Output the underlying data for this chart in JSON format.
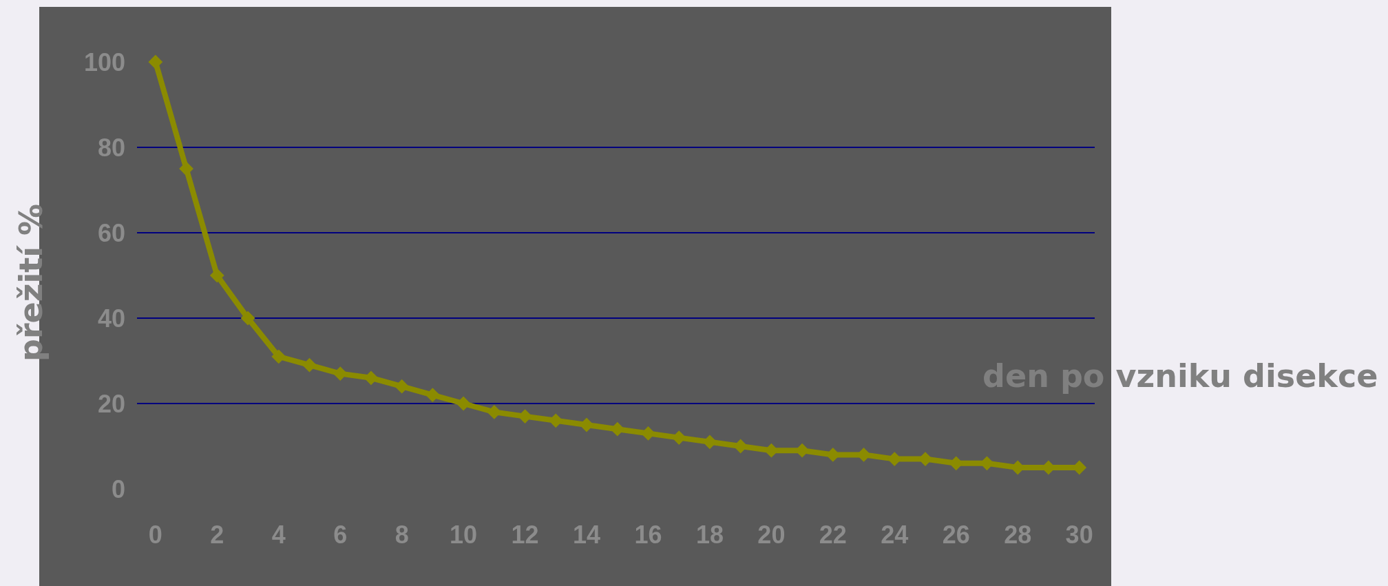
{
  "chart_data": {
    "type": "line",
    "xlabel": "den po vzniku disekce",
    "ylabel": "přežití %",
    "x": [
      0,
      1,
      2,
      3,
      4,
      5,
      6,
      7,
      8,
      9,
      10,
      11,
      12,
      13,
      14,
      15,
      16,
      17,
      18,
      19,
      20,
      21,
      22,
      23,
      24,
      25,
      26,
      27,
      28,
      29,
      30
    ],
    "series": [
      {
        "color": "#8b8b00",
        "values": [
          100,
          75,
          50,
          40,
          31,
          29,
          27,
          26,
          24,
          22,
          20,
          18,
          17,
          16,
          15,
          14,
          13,
          12,
          11,
          10,
          9,
          9,
          8,
          8,
          7,
          7,
          6,
          6,
          5,
          5,
          5
        ]
      }
    ],
    "xlim": [
      -0.6,
      30.5
    ],
    "xticks": [
      0,
      2,
      4,
      6,
      8,
      10,
      12,
      14,
      16,
      18,
      20,
      22,
      24,
      26,
      28,
      30
    ],
    "ylim": [
      0,
      100
    ],
    "yticks": [
      0,
      20,
      40,
      60,
      80,
      100
    ],
    "grid": "y",
    "legend": false,
    "marker": "diamond",
    "line_style": "solid"
  }
}
